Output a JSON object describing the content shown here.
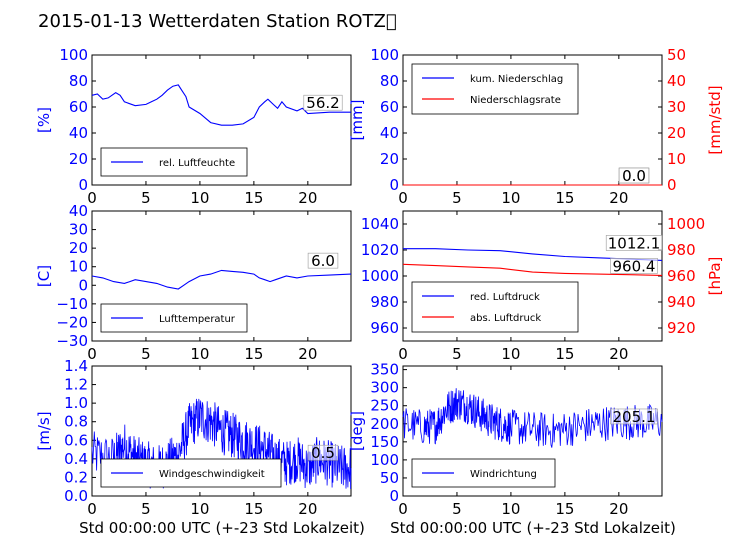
{
  "title": "2015-01-13 Wetterdaten Station ROTZ\u0000",
  "xlabel": "Std 00:00:00 UTC (+-23 Std Lokalzeit)",
  "colors": {
    "blue": "#0000ff",
    "red": "#ff0000",
    "axis": "#000000"
  },
  "chart_data": [
    {
      "type": "line",
      "xlim": [
        0,
        24
      ],
      "ylim": [
        0,
        100
      ],
      "x_ticks": [
        "0",
        "5",
        "10",
        "15",
        "20"
      ],
      "y_ticks": [
        "0",
        "20",
        "40",
        "60",
        "80",
        "100"
      ],
      "ylabel": "[%]",
      "series": [
        {
          "name": "rel. Luftfeuchte",
          "color": "#0000ff",
          "points": [
            [
              0,
              69
            ],
            [
              0.5,
              70
            ],
            [
              1,
              66
            ],
            [
              1.5,
              67
            ],
            [
              2.2,
              71
            ],
            [
              2.6,
              69
            ],
            [
              3,
              64
            ],
            [
              4,
              61
            ],
            [
              5,
              62
            ],
            [
              5.5,
              64
            ],
            [
              6,
              66
            ],
            [
              6.5,
              69
            ],
            [
              7,
              73
            ],
            [
              7.5,
              76
            ],
            [
              8,
              77
            ],
            [
              8.3,
              73
            ],
            [
              8.7,
              68
            ],
            [
              9,
              60
            ],
            [
              10,
              55
            ],
            [
              11,
              48
            ],
            [
              12,
              46
            ],
            [
              13,
              46
            ],
            [
              14,
              47
            ],
            [
              15,
              52
            ],
            [
              15.5,
              60
            ],
            [
              16,
              64
            ],
            [
              16.3,
              66
            ],
            [
              16.8,
              62
            ],
            [
              17.2,
              59
            ],
            [
              17.6,
              64
            ],
            [
              18,
              60
            ],
            [
              19,
              57
            ],
            [
              19.5,
              59
            ],
            [
              20,
              55
            ],
            [
              22,
              56
            ],
            [
              24,
              56
            ]
          ]
        }
      ],
      "annotation": "56.2",
      "legend": "bottom-left"
    },
    {
      "type": "line",
      "xlim": [
        0,
        24
      ],
      "ylim": [
        0,
        100
      ],
      "ylim_right": [
        0,
        50
      ],
      "x_ticks": [
        "0",
        "5",
        "10",
        "15",
        "20"
      ],
      "y_ticks": [
        "0",
        "20",
        "40",
        "60",
        "80",
        "100"
      ],
      "y_ticks_right": [
        "0",
        "10",
        "20",
        "30",
        "40",
        "50"
      ],
      "ylabel": "[mm]",
      "ylabel_right": "[mm/std]",
      "series": [
        {
          "name": "kum. Niederschlag",
          "color": "#0000ff",
          "points": [
            [
              0,
              0
            ],
            [
              24,
              0
            ]
          ]
        },
        {
          "name": "Niederschlagsrate",
          "color": "#ff0000",
          "points": [
            [
              0,
              0
            ],
            [
              24,
              0
            ]
          ]
        }
      ],
      "annotation": "0.0",
      "annotation_right": "0.0",
      "legend": "top-left"
    },
    {
      "type": "line",
      "xlim": [
        0,
        24
      ],
      "ylim": [
        -30,
        40
      ],
      "x_ticks": [
        "0",
        "5",
        "10",
        "15",
        "20"
      ],
      "y_ticks": [
        "−30",
        "−20",
        "−10",
        "0",
        "10",
        "20",
        "30",
        "40"
      ],
      "ylabel": "[C]",
      "series": [
        {
          "name": "Lufttemperatur",
          "color": "#0000ff",
          "points": [
            [
              0,
              5
            ],
            [
              1,
              4
            ],
            [
              2,
              2
            ],
            [
              3,
              1
            ],
            [
              3.5,
              2
            ],
            [
              4,
              3
            ],
            [
              5,
              2
            ],
            [
              6,
              1
            ],
            [
              7,
              -1
            ],
            [
              8,
              -2
            ],
            [
              8.5,
              0
            ],
            [
              9,
              2
            ],
            [
              10,
              5
            ],
            [
              11,
              6
            ],
            [
              12,
              8
            ],
            [
              13,
              7.5
            ],
            [
              14,
              7
            ],
            [
              15,
              6
            ],
            [
              15.5,
              4
            ],
            [
              16,
              3
            ],
            [
              16.5,
              2
            ],
            [
              17,
              3
            ],
            [
              18,
              5
            ],
            [
              19,
              4
            ],
            [
              20,
              5
            ],
            [
              22,
              5.5
            ],
            [
              24,
              6
            ]
          ]
        }
      ],
      "annotation": "6.0",
      "legend": "bottom-left"
    },
    {
      "type": "line",
      "xlim": [
        0,
        24
      ],
      "ylim": [
        950,
        1050
      ],
      "ylim_right": [
        910,
        1010
      ],
      "x_ticks": [
        "0",
        "5",
        "10",
        "15",
        "20"
      ],
      "y_ticks": [
        "960",
        "980",
        "1000",
        "1020",
        "1040"
      ],
      "y_ticks_right": [
        "920",
        "940",
        "960",
        "980",
        "1000"
      ],
      "ylabel": "",
      "ylabel_right": "[hPa]",
      "series": [
        {
          "name": "red. Luftdruck",
          "color": "#0000ff",
          "axis": "left",
          "points": [
            [
              0,
              1021
            ],
            [
              3,
              1021
            ],
            [
              6,
              1020
            ],
            [
              9,
              1019.5
            ],
            [
              12,
              1017
            ],
            [
              15,
              1015
            ],
            [
              18,
              1014
            ],
            [
              21,
              1013
            ],
            [
              24,
              1012
            ]
          ]
        },
        {
          "name": "abs. Luftdruck",
          "color": "#ff0000",
          "axis": "right",
          "points": [
            [
              0,
              969
            ],
            [
              3,
              968
            ],
            [
              6,
              967
            ],
            [
              9,
              966
            ],
            [
              12,
              963
            ],
            [
              15,
              962
            ],
            [
              18,
              961.5
            ],
            [
              21,
              961
            ],
            [
              24,
              960.5
            ]
          ]
        }
      ],
      "annotation": "1012.1",
      "annotation_right": "960.4",
      "legend": "bottom-left"
    },
    {
      "type": "line",
      "xlim": [
        0,
        24
      ],
      "ylim": [
        0,
        1.4
      ],
      "x_ticks": [
        "0",
        "5",
        "10",
        "15",
        "20"
      ],
      "y_ticks": [
        "0.0",
        "0.2",
        "0.4",
        "0.6",
        "0.8",
        "1.0",
        "1.2",
        "1.4"
      ],
      "ylabel": "[m/s]",
      "series": [
        {
          "name": "Windgeschwindigkeit",
          "color": "#0000ff",
          "noisy": true,
          "points": [
            [
              0,
              0.45
            ],
            [
              2,
              0.4
            ],
            [
              3,
              0.55
            ],
            [
              4,
              0.4
            ],
            [
              5,
              0.35
            ],
            [
              6,
              0.3
            ],
            [
              7,
              0.35
            ],
            [
              8,
              0.45
            ],
            [
              9,
              0.75
            ],
            [
              10,
              0.85
            ],
            [
              11,
              0.8
            ],
            [
              12,
              0.7
            ],
            [
              13,
              0.65
            ],
            [
              14,
              0.6
            ],
            [
              15,
              0.55
            ],
            [
              16,
              0.5
            ],
            [
              17,
              0.4
            ],
            [
              18,
              0.35
            ],
            [
              19,
              0.4
            ],
            [
              20,
              0.3
            ],
            [
              21,
              0.4
            ],
            [
              22,
              0.35
            ],
            [
              23,
              0.3
            ],
            [
              24,
              0.3
            ]
          ]
        }
      ],
      "annotation": "0.5",
      "legend": "bottom-left"
    },
    {
      "type": "line",
      "xlim": [
        0,
        24
      ],
      "ylim": [
        0,
        360
      ],
      "x_ticks": [
        "0",
        "5",
        "10",
        "15",
        "20"
      ],
      "y_ticks": [
        "0",
        "50",
        "100",
        "150",
        "200",
        "250",
        "300",
        "350"
      ],
      "ylabel": "[deg]",
      "series": [
        {
          "name": "Windrichtung",
          "color": "#0000ff",
          "noisy": true,
          "points": [
            [
              0,
              200
            ],
            [
              2,
              190
            ],
            [
              3,
              195
            ],
            [
              4,
              240
            ],
            [
              5,
              260
            ],
            [
              6,
              250
            ],
            [
              7,
              230
            ],
            [
              8,
              210
            ],
            [
              9,
              200
            ],
            [
              10,
              190
            ],
            [
              12,
              185
            ],
            [
              14,
              180
            ],
            [
              16,
              190
            ],
            [
              18,
              200
            ],
            [
              20,
              205
            ],
            [
              22,
              205
            ],
            [
              24,
              205
            ]
          ]
        }
      ],
      "annotation": "205.1",
      "legend": "bottom-left"
    }
  ]
}
